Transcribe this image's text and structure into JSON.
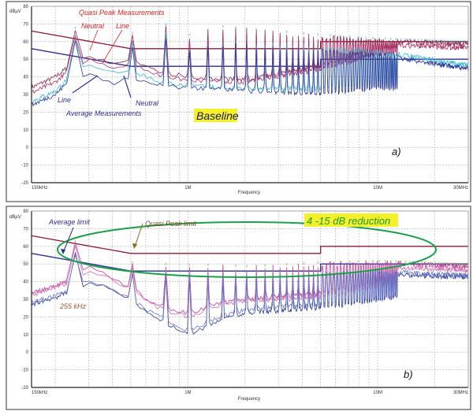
{
  "chart_data": [
    {
      "type": "line",
      "panel_label": "a)",
      "badge": "Baseline",
      "ylabel": "dBµV",
      "xlabel": "Frequency",
      "xscale": "log",
      "xlim_MHz": [
        0.15,
        30
      ],
      "ylim": [
        -20,
        80
      ],
      "grid": true,
      "x_tick_labels": [
        {
          "f": 0.15,
          "label": "150kHz"
        },
        {
          "f": 1,
          "label": "1M"
        },
        {
          "f": 10,
          "label": "10M"
        },
        {
          "f": 30,
          "label": "30MHz"
        }
      ],
      "y_ticks": [
        80,
        70,
        60,
        50,
        40,
        30,
        20,
        10,
        0,
        -10,
        -20
      ],
      "fundamental_MHz": 0.255,
      "limits": [
        {
          "kind": "quasi-peak",
          "color": "#8b1a3a",
          "points": [
            [
              0.15,
              66
            ],
            [
              0.5,
              56
            ],
            [
              5,
              56
            ],
            [
              5,
              60
            ],
            [
              30,
              60
            ]
          ]
        },
        {
          "kind": "average",
          "color": "#2a2f8f",
          "points": [
            [
              0.15,
              56
            ],
            [
              0.5,
              46
            ],
            [
              5,
              46
            ],
            [
              5,
              50
            ],
            [
              30,
              50
            ]
          ]
        }
      ],
      "series": [
        {
          "color": "#8b2a4a",
          "floor": [
            [
              0.15,
              34
            ],
            [
              0.2,
              40
            ],
            [
              0.25,
              48
            ],
            [
              0.3,
              52
            ],
            [
              0.4,
              47
            ],
            [
              0.5,
              50
            ],
            [
              0.7,
              43
            ],
            [
              1,
              40
            ],
            [
              2,
              38
            ],
            [
              5,
              46
            ],
            [
              10,
              55
            ],
            [
              20,
              55
            ],
            [
              30,
              52
            ]
          ],
          "peaks": [
            [
              0.255,
              68
            ],
            [
              0.51,
              65
            ],
            [
              0.765,
              70
            ],
            [
              1.0,
              64
            ],
            [
              1.5,
              69
            ],
            [
              3,
              66
            ],
            [
              5,
              64
            ],
            [
              10,
              62
            ],
            [
              30,
              60
            ]
          ]
        },
        {
          "color": "#b0306a",
          "floor": [
            [
              0.15,
              31
            ],
            [
              0.2,
              37
            ],
            [
              0.25,
              46
            ],
            [
              0.3,
              50
            ],
            [
              0.4,
              45
            ],
            [
              0.5,
              48
            ],
            [
              0.7,
              41
            ],
            [
              1,
              38
            ],
            [
              2,
              37
            ],
            [
              5,
              44
            ],
            [
              10,
              52
            ],
            [
              20,
              52
            ],
            [
              30,
              50
            ]
          ],
          "peaks": [
            [
              0.255,
              66
            ],
            [
              0.51,
              63
            ],
            [
              0.765,
              68
            ],
            [
              1.0,
              62
            ],
            [
              1.5,
              66
            ],
            [
              3,
              64
            ],
            [
              5,
              62
            ],
            [
              10,
              60
            ],
            [
              30,
              58
            ]
          ]
        },
        {
          "color": "#3cb8d8",
          "floor": [
            [
              0.15,
              26
            ],
            [
              0.2,
              32
            ],
            [
              0.25,
              42
            ],
            [
              0.3,
              46
            ],
            [
              0.4,
              42
            ],
            [
              0.5,
              44
            ],
            [
              0.7,
              37
            ],
            [
              1,
              35
            ],
            [
              2,
              33
            ],
            [
              5,
              33
            ],
            [
              10,
              35
            ],
            [
              20,
              30
            ],
            [
              30,
              33
            ]
          ],
          "peaks": [
            [
              0.255,
              64
            ],
            [
              0.51,
              60
            ],
            [
              0.765,
              66
            ],
            [
              1.0,
              58
            ],
            [
              1.5,
              62
            ],
            [
              3,
              60
            ],
            [
              5,
              58
            ],
            [
              10,
              56
            ],
            [
              30,
              48
            ]
          ]
        },
        {
          "color": "#2a3a9a",
          "floor": [
            [
              0.15,
              24
            ],
            [
              0.2,
              30
            ],
            [
              0.25,
              40
            ],
            [
              0.3,
              42
            ],
            [
              0.4,
              36
            ],
            [
              0.5,
              40
            ],
            [
              0.7,
              35
            ],
            [
              1,
              34
            ],
            [
              2,
              32
            ],
            [
              5,
              30
            ],
            [
              10,
              32
            ],
            [
              20,
              28
            ],
            [
              30,
              32
            ]
          ],
          "peaks": [
            [
              0.255,
              62
            ],
            [
              0.51,
              58
            ],
            [
              0.765,
              64
            ],
            [
              1.0,
              56
            ],
            [
              1.5,
              60
            ],
            [
              3,
              58
            ],
            [
              5,
              56
            ],
            [
              10,
              54
            ],
            [
              30,
              46
            ]
          ]
        }
      ],
      "annotations": [
        {
          "text": "Quasi Peak Measurements",
          "color": "#d22"
        },
        {
          "text": "Neutral",
          "color": "#d22"
        },
        {
          "text": "Line",
          "color": "#d22"
        },
        {
          "text": "Line",
          "color": "#2a2f8f"
        },
        {
          "text": "Neutral",
          "color": "#2a2f8f"
        },
        {
          "text": "Average Measurements",
          "color": "#2a2f8f"
        }
      ]
    },
    {
      "type": "line",
      "panel_label": "b)",
      "badge": "4 -15 dB reduction",
      "ylabel": "dBµV",
      "xlabel": "Frequency",
      "xscale": "log",
      "xlim_MHz": [
        0.15,
        30
      ],
      "ylim": [
        -20,
        80
      ],
      "grid": true,
      "x_tick_labels": [
        {
          "f": 0.15,
          "label": "150kHz"
        },
        {
          "f": 1,
          "label": "1M"
        },
        {
          "f": 10,
          "label": "10M"
        },
        {
          "f": 30,
          "label": "30MHz"
        }
      ],
      "y_ticks": [
        80,
        70,
        60,
        50,
        40,
        30,
        20,
        10,
        0,
        -10,
        -20
      ],
      "fundamental_MHz": 0.255,
      "limits": [
        {
          "kind": "quasi-peak",
          "color": "#8b1a3a",
          "points": [
            [
              0.15,
              66
            ],
            [
              0.5,
              56
            ],
            [
              5,
              56
            ],
            [
              5,
              60
            ],
            [
              30,
              60
            ]
          ]
        },
        {
          "kind": "average",
          "color": "#2a2f8f",
          "points": [
            [
              0.15,
              56
            ],
            [
              0.5,
              46
            ],
            [
              5,
              46
            ],
            [
              5,
              50
            ],
            [
              30,
              50
            ]
          ]
        }
      ],
      "series": [
        {
          "color": "#c0409a",
          "floor": [
            [
              0.15,
              33
            ],
            [
              0.2,
              38
            ],
            [
              0.25,
              41
            ],
            [
              0.3,
              48
            ],
            [
              0.4,
              42
            ],
            [
              0.5,
              36
            ],
            [
              0.7,
              26
            ],
            [
              1,
              22
            ],
            [
              1.5,
              28
            ],
            [
              2,
              30
            ],
            [
              5,
              33
            ],
            [
              10,
              38
            ],
            [
              20,
              42
            ],
            [
              30,
              40
            ]
          ],
          "peaks": [
            [
              0.255,
              63
            ],
            [
              0.51,
              51
            ],
            [
              1,
              50
            ],
            [
              2,
              49
            ],
            [
              5,
              51
            ],
            [
              10,
              52
            ],
            [
              30,
              50
            ]
          ]
        },
        {
          "color": "#d070b0",
          "floor": [
            [
              0.15,
              32
            ],
            [
              0.2,
              37
            ],
            [
              0.25,
              40
            ],
            [
              0.3,
              47
            ],
            [
              0.4,
              41
            ],
            [
              0.5,
              35
            ],
            [
              0.7,
              25
            ],
            [
              1,
              20
            ],
            [
              1.5,
              27
            ],
            [
              2,
              29
            ],
            [
              5,
              31
            ],
            [
              10,
              36
            ],
            [
              20,
              40
            ],
            [
              30,
              38
            ]
          ],
          "peaks": [
            [
              0.255,
              61
            ],
            [
              0.51,
              49
            ],
            [
              1,
              48
            ],
            [
              2,
              47
            ],
            [
              5,
              49
            ],
            [
              10,
              50
            ],
            [
              30,
              48
            ]
          ]
        },
        {
          "color": "#2a3a9a",
          "floor": [
            [
              0.15,
              27
            ],
            [
              0.2,
              31
            ],
            [
              0.25,
              35
            ],
            [
              0.3,
              40
            ],
            [
              0.4,
              35
            ],
            [
              0.5,
              29
            ],
            [
              0.7,
              18
            ],
            [
              1,
              10
            ],
            [
              1.5,
              18
            ],
            [
              2,
              22
            ],
            [
              5,
              25
            ],
            [
              10,
              28
            ],
            [
              20,
              32
            ],
            [
              30,
              36
            ]
          ],
          "peaks": [
            [
              0.255,
              57
            ],
            [
              0.51,
              45
            ],
            [
              1,
              44
            ],
            [
              2,
              43
            ],
            [
              5,
              45
            ],
            [
              10,
              46
            ],
            [
              30,
              44
            ]
          ]
        },
        {
          "color": "#6a78c8",
          "floor": [
            [
              0.15,
              28
            ],
            [
              0.2,
              32
            ],
            [
              0.25,
              36
            ],
            [
              0.3,
              41
            ],
            [
              0.4,
              36
            ],
            [
              0.5,
              30
            ],
            [
              0.7,
              20
            ],
            [
              1,
              12
            ],
            [
              1.5,
              20
            ],
            [
              2,
              24
            ],
            [
              5,
              27
            ],
            [
              10,
              30
            ],
            [
              20,
              33
            ],
            [
              30,
              37
            ]
          ],
          "peaks": [
            [
              0.255,
              58
            ],
            [
              0.51,
              46
            ],
            [
              1,
              45
            ],
            [
              2,
              44
            ],
            [
              5,
              46
            ],
            [
              10,
              47
            ],
            [
              30,
              45
            ]
          ]
        }
      ],
      "annotations": [
        {
          "text": "Average limit",
          "color": "#2a2f8f"
        },
        {
          "text": "Quasi Peak limit",
          "color": "#7a4a20"
        },
        {
          "text": "255 kHz",
          "color": "#9a5a30"
        }
      ]
    }
  ]
}
